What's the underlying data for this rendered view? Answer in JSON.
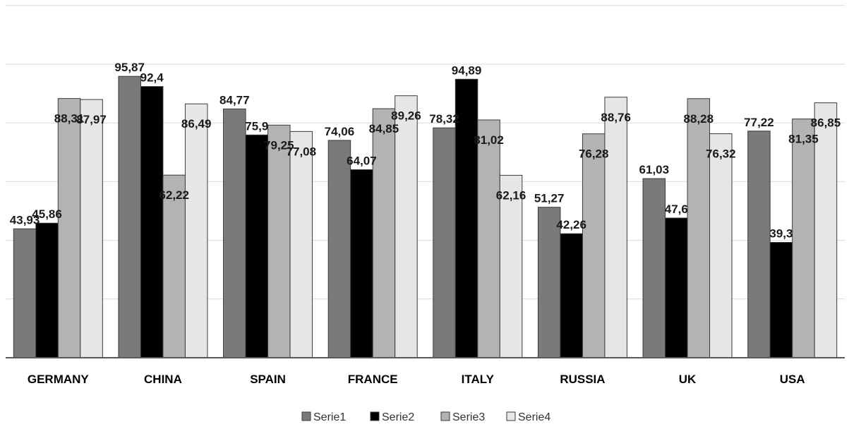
{
  "chart_data": {
    "type": "bar",
    "title": "",
    "xlabel": "",
    "ylabel": "",
    "ylim": [
      0,
      120
    ],
    "grid": true,
    "legend_position": "bottom",
    "categories": [
      "GERMANY",
      "CHINA",
      "SPAIN",
      "FRANCE",
      "ITALY",
      "RUSSIA",
      "UK",
      "USA"
    ],
    "series": [
      {
        "name": "Serie1",
        "color": "#7a7a7a",
        "values": [
          43.93,
          95.87,
          84.77,
          74.06,
          78.32,
          51.27,
          61.03,
          77.22
        ],
        "labels": [
          "43,93",
          "95,87",
          "84,77",
          "74,06",
          "78,32",
          "51,27",
          "61,03",
          "77,22"
        ]
      },
      {
        "name": "Serie2",
        "color": "#000000",
        "values": [
          45.86,
          92.4,
          75.9,
          64.07,
          94.89,
          42.26,
          47.6,
          39.3
        ],
        "labels": [
          "45,86",
          "92,4",
          "75,9",
          "64,07",
          "94,89",
          "42,26",
          "47,6",
          "39,3"
        ]
      },
      {
        "name": "Serie3",
        "color": "#b3b3b3",
        "values": [
          88.31,
          62.22,
          79.25,
          84.85,
          81.02,
          76.28,
          88.28,
          81.35
        ],
        "labels": [
          "88,31",
          "62,22",
          "79,25",
          "84,85",
          "81,02",
          "76,28",
          "88,28",
          "81,35"
        ]
      },
      {
        "name": "Serie4",
        "color": "#e6e6e6",
        "values": [
          87.97,
          86.49,
          77.08,
          89.26,
          62.16,
          88.76,
          76.32,
          86.85
        ],
        "labels": [
          "87,97",
          "86,49",
          "77,08",
          "89,26",
          "62,16",
          "88,76",
          "76,32",
          "86,85"
        ]
      }
    ]
  }
}
